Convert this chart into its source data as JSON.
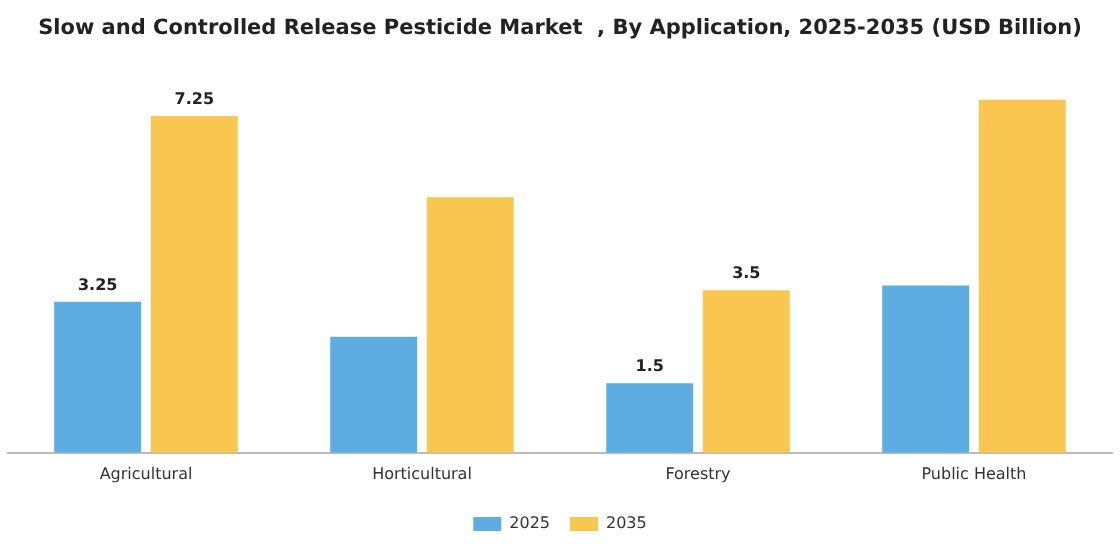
{
  "chart_data": {
    "type": "bar",
    "title": "Slow and Controlled Release Pesticide Market  , By Application, 2025-2035 (USD Billion)",
    "categories": [
      "Agricultural",
      "Horticultural",
      "Forestry",
      "Public Health"
    ],
    "series": [
      {
        "name": "2025",
        "color": "#5dade2",
        "values": [
          3.25,
          2.5,
          1.5,
          3.6
        ],
        "value_labels": [
          "3.25",
          null,
          "1.5",
          null
        ]
      },
      {
        "name": "2035",
        "color": "#f9c74f",
        "values": [
          7.25,
          5.5,
          3.5,
          7.6
        ],
        "value_labels": [
          "7.25",
          null,
          "3.5",
          null
        ]
      }
    ],
    "tick_labels": "x",
    "grid": false,
    "legend": "bottom"
  }
}
